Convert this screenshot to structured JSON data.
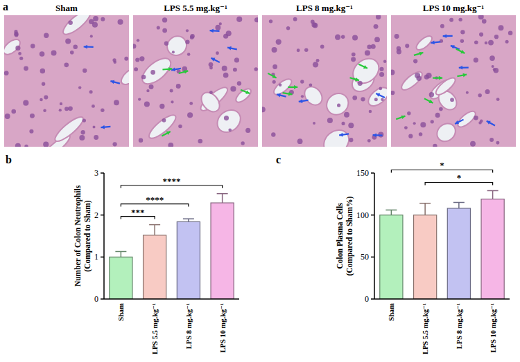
{
  "panel_labels": [
    "a",
    "b",
    "c"
  ],
  "micrographs": {
    "titles": [
      "Sham",
      "LPS 5.5 mg.kg⁻¹",
      "LPS 8 mg.kg⁻¹",
      "LPS 10 mg.kg⁻¹"
    ]
  },
  "chart_data": [
    {
      "type": "bar",
      "categories": [
        "Sham",
        "LPS 5.5 mg.kg⁻¹",
        "LPS 8 mg.kg⁻¹",
        "LPS 10 mg.kg⁻¹"
      ],
      "values": [
        1.0,
        1.52,
        1.84,
        2.29
      ],
      "errors": [
        0.13,
        0.25,
        0.07,
        0.22
      ],
      "colors": [
        "#b3f0bc",
        "#f8cbc4",
        "#c2c2f2",
        "#f6b6e6"
      ],
      "y_label": "Number of Colon Neutrophils (Compared to Sham)",
      "ylim": [
        0,
        3
      ],
      "yticks": [
        0,
        1,
        2,
        3
      ],
      "grid": false,
      "annotations": [
        {
          "between": [
            "Sham",
            "LPS 5.5 mg.kg⁻¹"
          ],
          "label": "***"
        },
        {
          "between": [
            "Sham",
            "LPS 8 mg.kg⁻¹"
          ],
          "label": "****"
        },
        {
          "between": [
            "Sham",
            "LPS 10 mg.kg⁻¹"
          ],
          "label": "****"
        }
      ]
    },
    {
      "type": "bar",
      "categories": [
        "Sham",
        "LPS 5.5 mg.kg⁻¹",
        "LPS 8 mg.kg⁻¹",
        "LPS 10 mg.kg⁻¹"
      ],
      "values": [
        100,
        100,
        108,
        119
      ],
      "errors": [
        6,
        14,
        7,
        10
      ],
      "colors": [
        "#b3f0bc",
        "#f8cbc4",
        "#c2c2f2",
        "#f6b6e6"
      ],
      "y_label": "Colon Plasma Cells (Compared to Sham%)",
      "ylim": [
        0,
        150
      ],
      "yticks": [
        0,
        50,
        100,
        150
      ],
      "grid": false,
      "annotations": [
        {
          "between": [
            "Sham",
            "LPS 10 mg.kg⁻¹"
          ],
          "label": "*"
        },
        {
          "between": [
            "LPS 5.5 mg.kg⁻¹",
            "LPS 10 mg.kg⁻¹"
          ],
          "label": "*"
        }
      ]
    }
  ]
}
